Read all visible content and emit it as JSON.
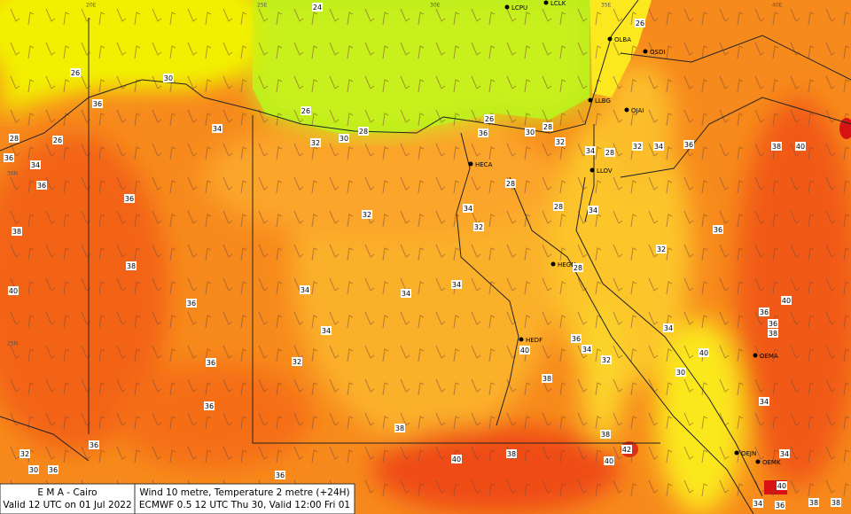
{
  "grid_labels": [
    "20E",
    "25E",
    "30E",
    "35E",
    "40E",
    "30N",
    "25N"
  ],
  "stations": [
    "LCPU",
    "LCLK",
    "OLBA",
    "OSDI",
    "LLBG",
    "OJAI",
    "HECA",
    "LLOV",
    "HEGN",
    "HEDF",
    "OEMA",
    "OEJN",
    "OEMK"
  ],
  "temperature_labels": [
    24,
    26,
    26,
    30,
    36,
    34,
    26,
    32,
    30,
    28,
    26,
    36,
    30,
    28,
    32,
    28,
    26,
    36,
    34,
    36,
    36,
    38,
    32,
    34,
    28,
    32,
    28,
    34,
    28,
    34,
    32,
    34,
    36,
    38,
    40,
    36,
    32,
    38,
    40,
    34,
    34,
    34,
    28,
    36,
    34,
    36,
    34,
    34,
    36,
    40,
    36,
    38,
    40,
    32,
    30,
    36,
    32,
    40,
    38,
    36,
    38,
    38,
    36,
    32,
    30,
    36,
    36,
    40,
    38,
    42,
    40,
    34,
    34,
    40,
    34,
    36,
    38,
    38
  ],
  "footer": {
    "left": [
      "E M A  -  Cairo",
      "Valid 12 UTC on 01 Jul 2022"
    ],
    "right": [
      "Wind  10 metre, Temperature  2 metre (+24H)",
      "ECMWF 0.5 12 UTC Thu 30, Valid 12:00 Fri 01"
    ]
  }
}
